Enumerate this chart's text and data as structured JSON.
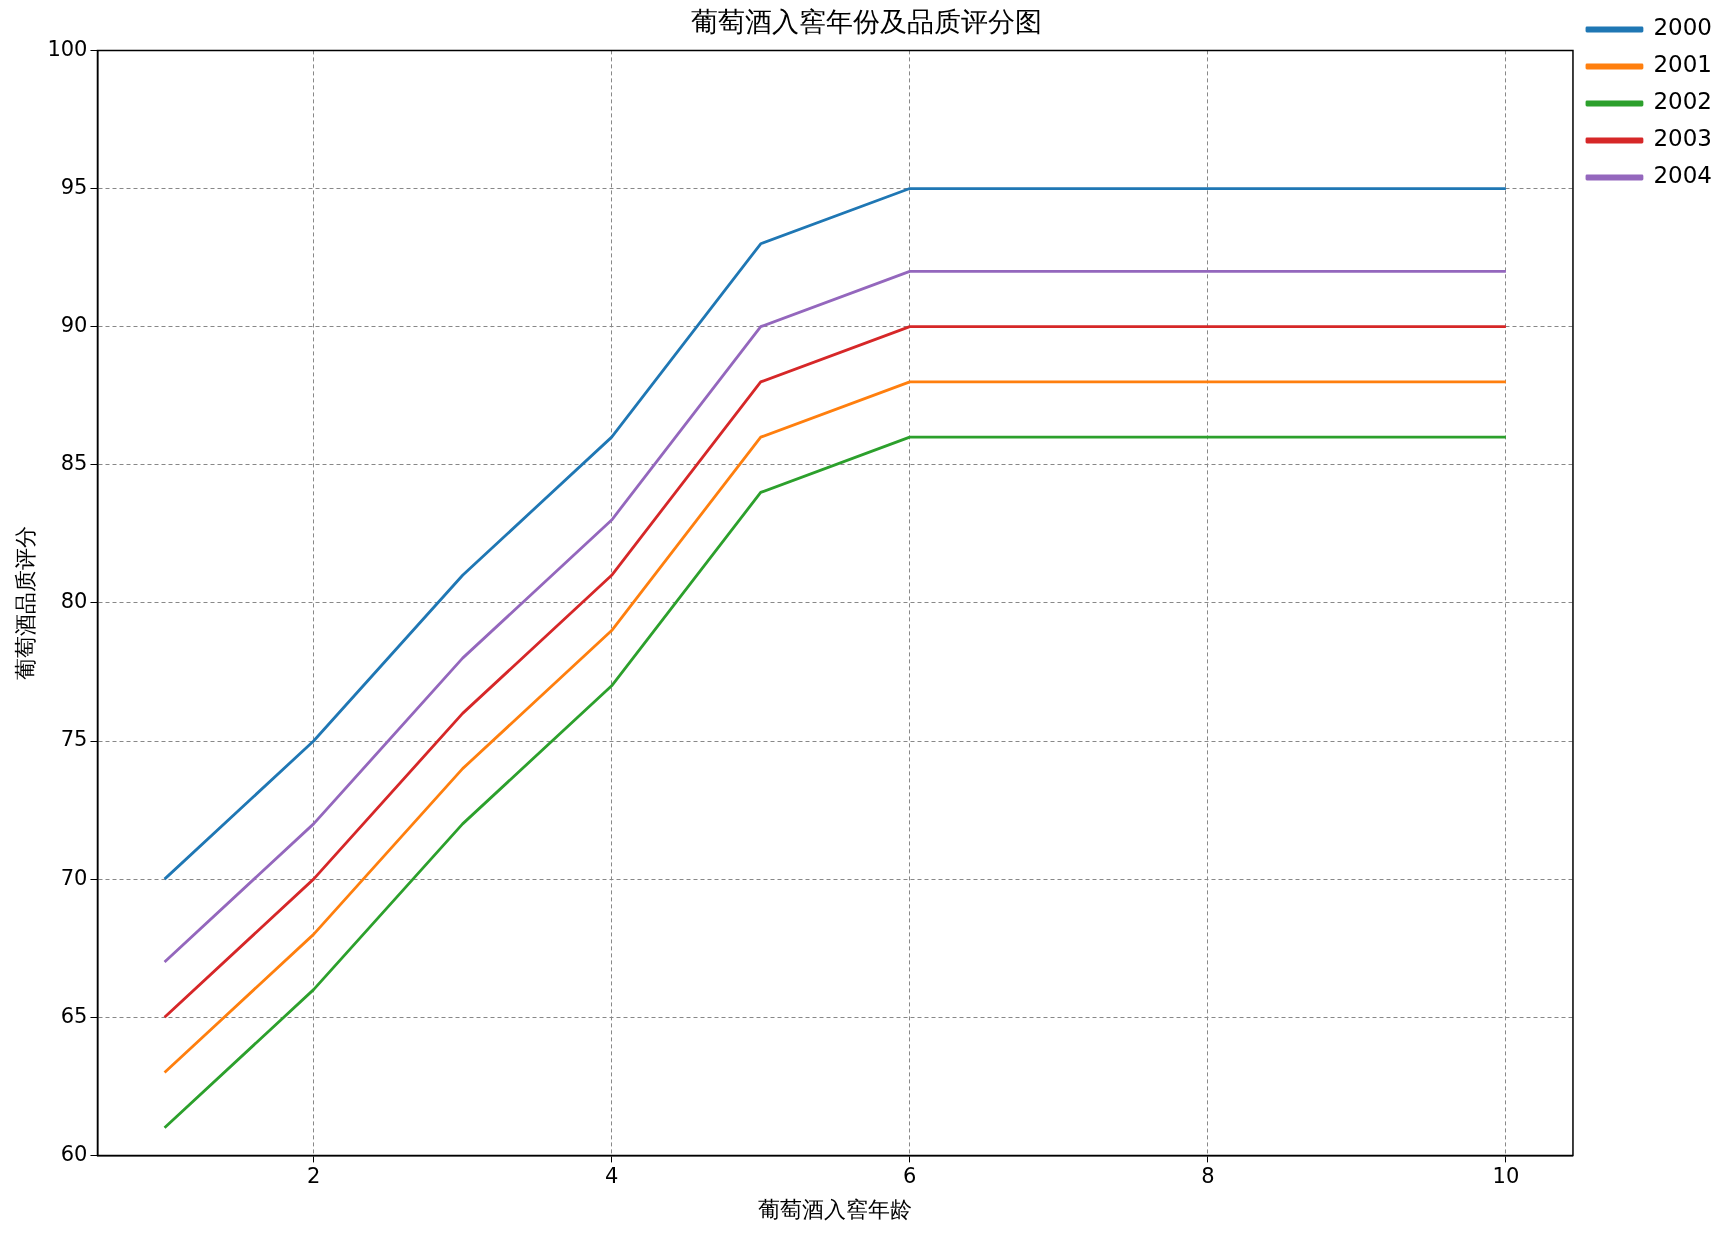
{
  "chart_data": {
    "type": "line",
    "title": "葡萄酒入窖年份及品质评分图",
    "xlabel": "葡萄酒入窖年龄",
    "ylabel": "葡萄酒品质评分",
    "x": [
      1,
      2,
      3,
      4,
      5,
      6,
      7,
      8,
      9,
      10
    ],
    "series": [
      {
        "name": "2000",
        "color": "#1f77b4",
        "values": [
          70,
          75,
          81,
          86,
          93,
          95,
          95,
          95,
          95,
          95
        ]
      },
      {
        "name": "2001",
        "color": "#ff7f0e",
        "values": [
          63,
          68,
          74,
          79,
          86,
          88,
          88,
          88,
          88,
          88
        ]
      },
      {
        "name": "2002",
        "color": "#2ca02c",
        "values": [
          61,
          66,
          72,
          77,
          84,
          86,
          86,
          86,
          86,
          86
        ]
      },
      {
        "name": "2003",
        "color": "#d62728",
        "values": [
          65,
          70,
          76,
          81,
          88,
          90,
          90,
          90,
          90,
          90
        ]
      },
      {
        "name": "2004",
        "color": "#9467bd",
        "values": [
          67,
          72,
          78,
          83,
          90,
          92,
          92,
          92,
          92,
          92
        ]
      }
    ],
    "xlim": [
      0.55,
      10.45
    ],
    "xticks": [
      2,
      4,
      6,
      8,
      10
    ],
    "ylim": [
      60,
      100
    ],
    "yticks": [
      60,
      65,
      70,
      75,
      80,
      85,
      90,
      95,
      100
    ],
    "grid": true,
    "legend": "top right",
    "marker": "none",
    "line_style": "solid"
  }
}
